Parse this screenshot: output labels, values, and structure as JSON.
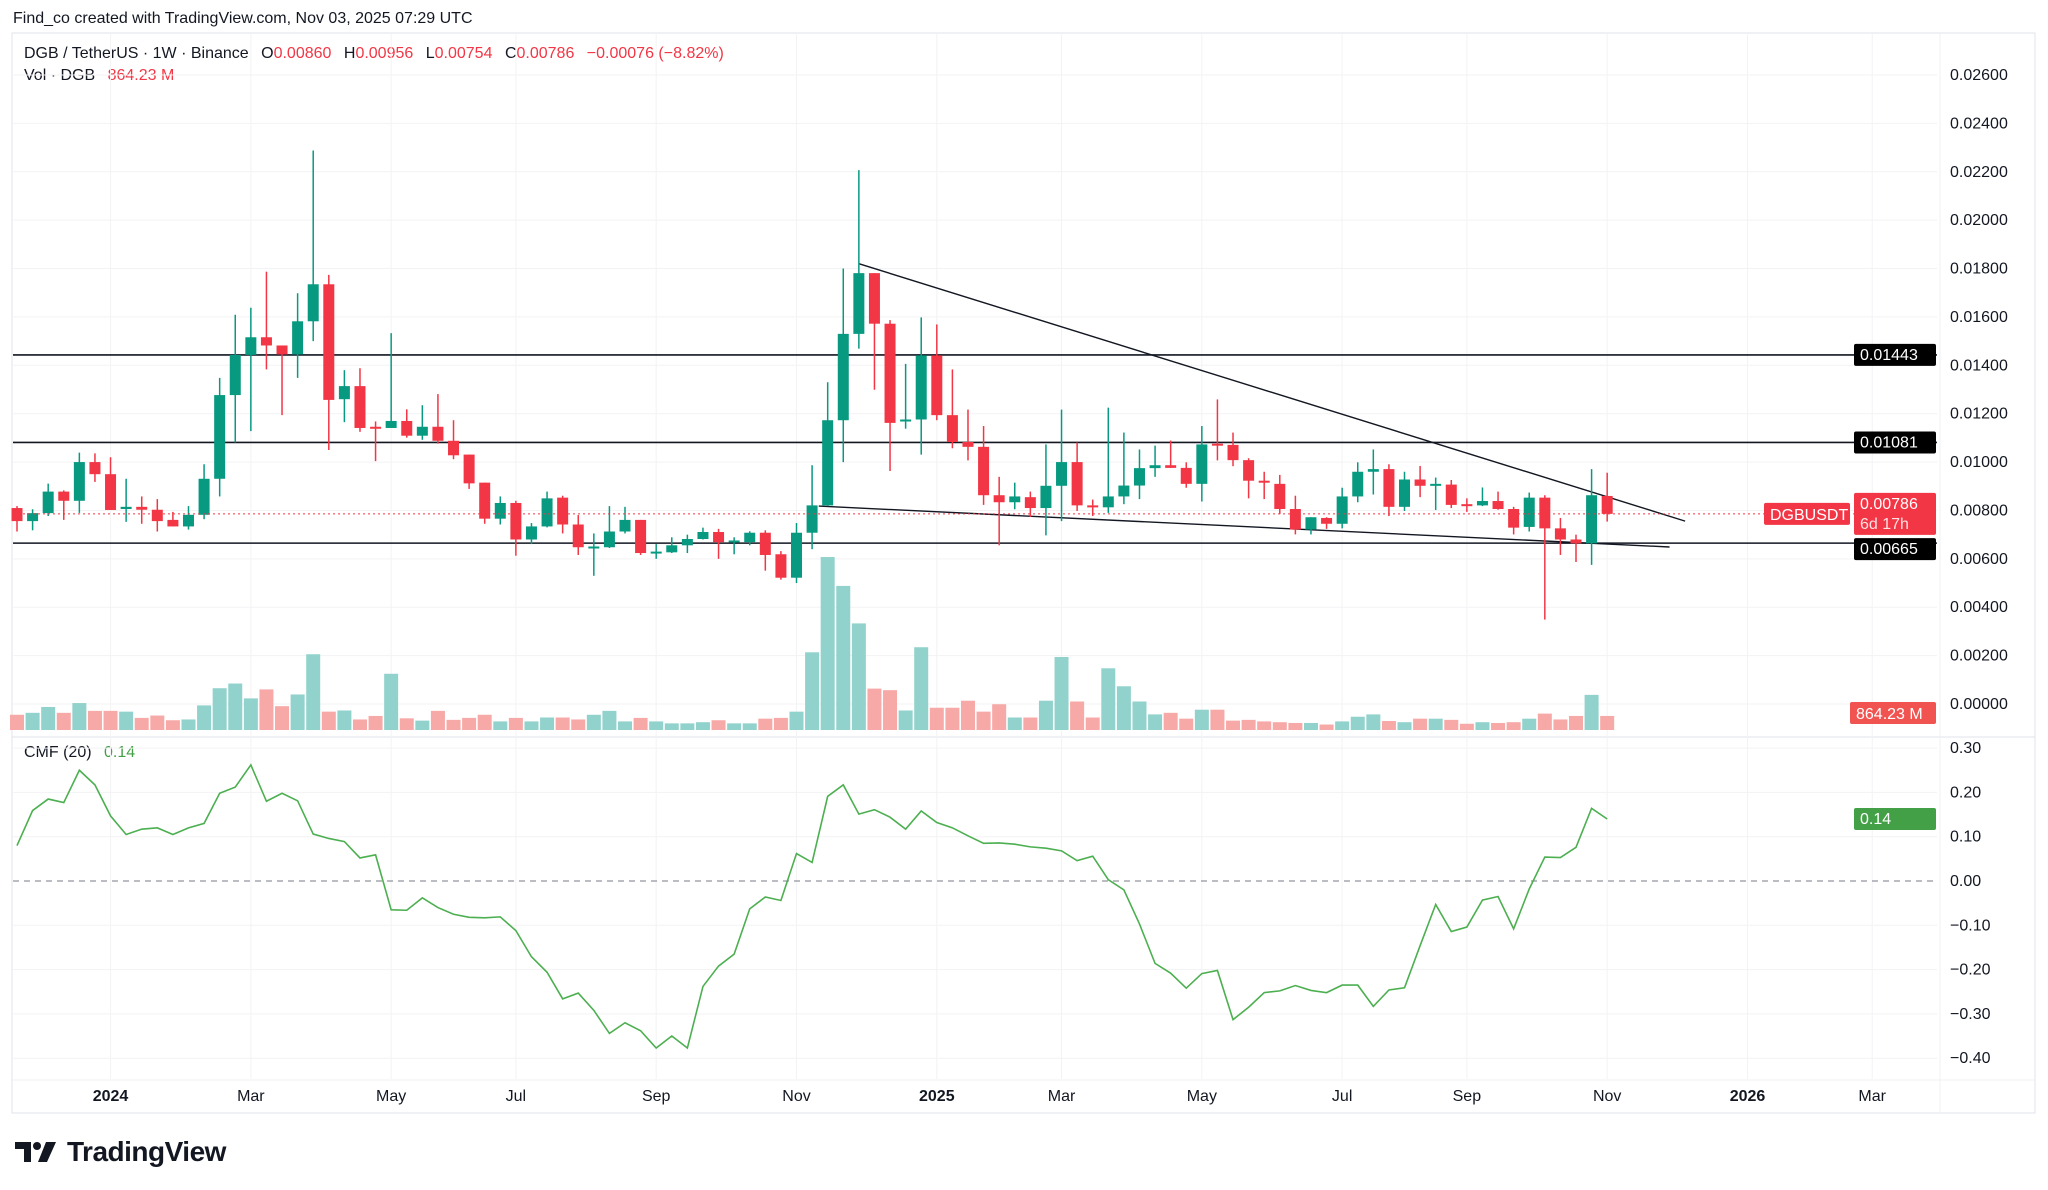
{
  "header": {
    "attribution": "Find_co created with TradingView.com, Nov 03, 2025 07:29 UTC"
  },
  "legend": {
    "symbol": "DGB / TetherUS · 1W · Binance",
    "o_label": "O",
    "open": "0.00860",
    "h_label": "H",
    "high": "0.00956",
    "l_label": "L",
    "low": "0.00754",
    "c_label": "C",
    "close": "0.00786",
    "change": "−0.00076 (−8.82%)",
    "vol_label": "Vol · DGB",
    "vol_value": "864.23 M",
    "cmf_label": "CMF (20)",
    "cmf_value": "0.14"
  },
  "logo": {
    "text": "TradingView"
  },
  "colors": {
    "up": "#089981",
    "down": "#f23645",
    "vol_up": "#92d2cc",
    "vol_down": "#f7a9a7",
    "cmf": "#4caf50",
    "level": "#131722"
  },
  "chart_data": {
    "type": "candlestick",
    "symbol": "DGBUSDT",
    "interval": "1W",
    "price_axis": {
      "ticks": [
        "0.02600",
        "0.02400",
        "0.02200",
        "0.02000",
        "0.01800",
        "0.01600",
        "0.01400",
        "0.01200",
        "0.01000",
        "0.00800",
        "0.00600",
        "0.00400",
        "0.00200",
        "0.00000"
      ],
      "range": [
        0,
        0.026
      ]
    },
    "cmf_axis": {
      "ticks": [
        "0.30",
        "0.20",
        "0.10",
        "0.00",
        "−0.10",
        "−0.20",
        "−0.30",
        "−0.40"
      ],
      "range": [
        -0.4,
        0.3
      ]
    },
    "time_axis": [
      {
        "text": "2024",
        "date": "2024-01-01",
        "bold": true
      },
      {
        "text": "Mar",
        "date": "2024-03-04"
      },
      {
        "text": "May",
        "date": "2024-05-06"
      },
      {
        "text": "Jul",
        "date": "2024-07-01"
      },
      {
        "text": "Sep",
        "date": "2024-09-02"
      },
      {
        "text": "Nov",
        "date": "2024-11-04"
      },
      {
        "text": "2025",
        "date": "2025-01-06",
        "bold": true
      },
      {
        "text": "Mar",
        "date": "2025-03-03"
      },
      {
        "text": "May",
        "date": "2025-05-05"
      },
      {
        "text": "Jul",
        "date": "2025-07-07"
      },
      {
        "text": "Sep",
        "date": "2025-09-01"
      },
      {
        "text": "Nov",
        "date": "2025-11-03"
      },
      {
        "text": "2026",
        "date": "2026-01-05",
        "bold": true
      },
      {
        "text": "Mar",
        "date": "2026-03-02"
      }
    ],
    "grid": true,
    "columns": [
      "date",
      "open",
      "high",
      "low",
      "close",
      "volume_M"
    ],
    "candles": [
      [
        "2023-11-20",
        0.0081,
        0.00818,
        0.00713,
        0.00756,
        936
      ],
      [
        "2023-11-27",
        0.00756,
        0.00805,
        0.00718,
        0.00789,
        1056
      ],
      [
        "2023-12-04",
        0.00789,
        0.00911,
        0.00777,
        0.00878,
        1416
      ],
      [
        "2023-12-11",
        0.00878,
        0.00883,
        0.00761,
        0.0084,
        1056
      ],
      [
        "2023-12-18",
        0.0084,
        0.01039,
        0.0079,
        0.01,
        1656
      ],
      [
        "2023-12-25",
        0.01,
        0.01036,
        0.00918,
        0.0095,
        1176
      ],
      [
        "2024-01-01",
        0.0095,
        0.0102,
        0.00802,
        0.00802,
        1176
      ],
      [
        "2024-01-08",
        0.00806,
        0.00931,
        0.00753,
        0.00815,
        1128
      ],
      [
        "2024-01-15",
        0.00815,
        0.00858,
        0.00745,
        0.00803,
        744
      ],
      [
        "2024-01-22",
        0.00803,
        0.00847,
        0.00713,
        0.00756,
        888
      ],
      [
        "2024-01-29",
        0.00761,
        0.00794,
        0.00734,
        0.00734,
        600
      ],
      [
        "2024-02-05",
        0.00734,
        0.00818,
        0.00721,
        0.00782,
        648
      ],
      [
        "2024-02-12",
        0.00782,
        0.00991,
        0.00764,
        0.00931,
        1512
      ],
      [
        "2024-02-19",
        0.00931,
        0.01348,
        0.00858,
        0.01277,
        2568
      ],
      [
        "2024-02-26",
        0.01277,
        0.01609,
        0.01081,
        0.01443,
        2856
      ],
      [
        "2024-03-04",
        0.01443,
        0.01638,
        0.01128,
        0.01516,
        1944
      ],
      [
        "2024-03-11",
        0.01516,
        0.01787,
        0.01383,
        0.01482,
        2496
      ],
      [
        "2024-03-18",
        0.01482,
        0.01482,
        0.01194,
        0.01445,
        1464
      ],
      [
        "2024-03-25",
        0.01445,
        0.01698,
        0.01348,
        0.01582,
        2184
      ],
      [
        "2024-04-01",
        0.01582,
        0.02288,
        0.015,
        0.01735,
        4656
      ],
      [
        "2024-04-08",
        0.01735,
        0.01774,
        0.0105,
        0.01257,
        1128
      ],
      [
        "2024-04-15",
        0.0126,
        0.0138,
        0.01165,
        0.01314,
        1200
      ],
      [
        "2024-04-22",
        0.01314,
        0.01388,
        0.01125,
        0.01141,
        648
      ],
      [
        "2024-04-29",
        0.01146,
        0.01168,
        0.01004,
        0.01141,
        864
      ],
      [
        "2024-05-06",
        0.01141,
        0.01533,
        0.01141,
        0.0117,
        3456
      ],
      [
        "2024-05-13",
        0.0117,
        0.01218,
        0.01101,
        0.01109,
        720
      ],
      [
        "2024-05-20",
        0.01109,
        0.01235,
        0.01092,
        0.01146,
        576
      ],
      [
        "2024-05-27",
        0.01146,
        0.01281,
        0.01076,
        0.01088,
        1176
      ],
      [
        "2024-06-03",
        0.01088,
        0.01173,
        0.01012,
        0.01028,
        624
      ],
      [
        "2024-06-10",
        0.01031,
        0.01031,
        0.00889,
        0.00912,
        744
      ],
      [
        "2024-06-17",
        0.00915,
        0.00915,
        0.00745,
        0.00766,
        936
      ],
      [
        "2024-06-24",
        0.00766,
        0.00858,
        0.00742,
        0.00831,
        528
      ],
      [
        "2024-07-01",
        0.00831,
        0.0084,
        0.00613,
        0.0068,
        744
      ],
      [
        "2024-07-08",
        0.0068,
        0.00748,
        0.00661,
        0.00734,
        528
      ],
      [
        "2024-07-15",
        0.00734,
        0.00878,
        0.0073,
        0.0085,
        768
      ],
      [
        "2024-07-22",
        0.00853,
        0.00861,
        0.00705,
        0.00742,
        768
      ],
      [
        "2024-07-29",
        0.00742,
        0.00781,
        0.00616,
        0.00648,
        648
      ],
      [
        "2024-08-05",
        0.00645,
        0.00705,
        0.0053,
        0.00651,
        936
      ],
      [
        "2024-08-12",
        0.00648,
        0.00818,
        0.00645,
        0.00713,
        1176
      ],
      [
        "2024-08-19",
        0.00713,
        0.00815,
        0.00705,
        0.00761,
        528
      ],
      [
        "2024-08-26",
        0.00761,
        0.00761,
        0.00616,
        0.00624,
        744
      ],
      [
        "2024-09-02",
        0.00624,
        0.00661,
        0.006,
        0.0063,
        528
      ],
      [
        "2024-09-09",
        0.00627,
        0.00689,
        0.00624,
        0.00656,
        408
      ],
      [
        "2024-09-16",
        0.00656,
        0.007,
        0.00624,
        0.00682,
        408
      ],
      [
        "2024-09-23",
        0.00682,
        0.00729,
        0.0068,
        0.00711,
        480
      ],
      [
        "2024-09-30",
        0.00711,
        0.00724,
        0.006,
        0.00669,
        600
      ],
      [
        "2024-10-07",
        0.0067,
        0.00689,
        0.00619,
        0.00676,
        408
      ],
      [
        "2024-10-14",
        0.00669,
        0.00714,
        0.00656,
        0.00708,
        408
      ],
      [
        "2024-10-21",
        0.00708,
        0.00718,
        0.00551,
        0.00616,
        696
      ],
      [
        "2024-10-28",
        0.00619,
        0.00632,
        0.00514,
        0.00522,
        744
      ],
      [
        "2024-11-04",
        0.00522,
        0.00748,
        0.005,
        0.00708,
        1128
      ],
      [
        "2024-11-11",
        0.00708,
        0.00987,
        0.0064,
        0.00821,
        4776
      ],
      [
        "2024-11-18",
        0.00821,
        0.0133,
        0.00818,
        0.01173,
        10632
      ],
      [
        "2024-11-25",
        0.01173,
        0.018,
        0.01,
        0.0153,
        8856
      ],
      [
        "2024-12-02",
        0.0153,
        0.02207,
        0.01469,
        0.01781,
        6552
      ],
      [
        "2024-12-09",
        0.01781,
        0.01781,
        0.01299,
        0.01572,
        2544
      ],
      [
        "2024-12-16",
        0.01572,
        0.01587,
        0.00963,
        0.01162,
        2448
      ],
      [
        "2024-12-23",
        0.01168,
        0.01406,
        0.01138,
        0.01176,
        1200
      ],
      [
        "2024-12-30",
        0.01176,
        0.01598,
        0.01031,
        0.01441,
        5088
      ],
      [
        "2025-01-06",
        0.01441,
        0.01569,
        0.01173,
        0.01194,
        1368
      ],
      [
        "2025-01-13",
        0.01194,
        0.01383,
        0.01057,
        0.01083,
        1368
      ],
      [
        "2025-01-20",
        0.01083,
        0.01217,
        0.01007,
        0.01063,
        1800
      ],
      [
        "2025-01-27",
        0.01063,
        0.01149,
        0.00823,
        0.00863,
        1128
      ],
      [
        "2025-02-03",
        0.00863,
        0.00939,
        0.00656,
        0.00834,
        1584
      ],
      [
        "2025-02-10",
        0.00834,
        0.00915,
        0.00805,
        0.00858,
        768
      ],
      [
        "2025-02-17",
        0.00855,
        0.00878,
        0.00773,
        0.0081,
        768
      ],
      [
        "2025-02-24",
        0.0081,
        0.01073,
        0.00697,
        0.00902,
        1800
      ],
      [
        "2025-03-03",
        0.00902,
        0.01217,
        0.00756,
        0.01,
        4488
      ],
      [
        "2025-03-10",
        0.01,
        0.01081,
        0.00798,
        0.00821,
        1752
      ],
      [
        "2025-03-17",
        0.00821,
        0.00845,
        0.00777,
        0.00813,
        768
      ],
      [
        "2025-03-24",
        0.00813,
        0.01225,
        0.0079,
        0.00858,
        3792
      ],
      [
        "2025-03-31",
        0.00858,
        0.01122,
        0.00826,
        0.00903,
        2688
      ],
      [
        "2025-04-07",
        0.00903,
        0.01052,
        0.00847,
        0.00975,
        1752
      ],
      [
        "2025-04-14",
        0.00975,
        0.01068,
        0.00939,
        0.00987,
        960
      ],
      [
        "2025-04-21",
        0.00987,
        0.01089,
        0.00976,
        0.00976,
        1056
      ],
      [
        "2025-04-28",
        0.00976,
        0.00999,
        0.00894,
        0.0091,
        696
      ],
      [
        "2025-05-05",
        0.0091,
        0.01149,
        0.00837,
        0.01073,
        1248
      ],
      [
        "2025-05-12",
        0.01076,
        0.01259,
        0.01007,
        0.01071,
        1248
      ],
      [
        "2025-05-19",
        0.01071,
        0.01122,
        0.00983,
        0.01008,
        576
      ],
      [
        "2025-05-26",
        0.01008,
        0.01016,
        0.0085,
        0.00923,
        624
      ],
      [
        "2025-06-02",
        0.00923,
        0.0096,
        0.00847,
        0.00915,
        528
      ],
      [
        "2025-06-09",
        0.0091,
        0.00947,
        0.00785,
        0.00806,
        480
      ],
      [
        "2025-06-16",
        0.00806,
        0.00861,
        0.00701,
        0.00721,
        432
      ],
      [
        "2025-06-23",
        0.00721,
        0.00772,
        0.00701,
        0.00772,
        432
      ],
      [
        "2025-06-30",
        0.00769,
        0.00772,
        0.00724,
        0.00745,
        336
      ],
      [
        "2025-07-07",
        0.00745,
        0.00894,
        0.00726,
        0.00858,
        528
      ],
      [
        "2025-07-14",
        0.00858,
        0.00999,
        0.00834,
        0.0096,
        816
      ],
      [
        "2025-07-21",
        0.0096,
        0.01052,
        0.00866,
        0.00971,
        960
      ],
      [
        "2025-07-28",
        0.00971,
        0.00991,
        0.00777,
        0.00815,
        552
      ],
      [
        "2025-08-04",
        0.00815,
        0.0096,
        0.00798,
        0.00928,
        480
      ],
      [
        "2025-08-11",
        0.00928,
        0.00984,
        0.00855,
        0.00902,
        696
      ],
      [
        "2025-08-18",
        0.00907,
        0.00936,
        0.00802,
        0.0091,
        696
      ],
      [
        "2025-08-25",
        0.00907,
        0.00926,
        0.0081,
        0.00823,
        624
      ],
      [
        "2025-09-01",
        0.00826,
        0.0085,
        0.00794,
        0.00821,
        384
      ],
      [
        "2025-09-08",
        0.00821,
        0.00895,
        0.00818,
        0.00839,
        480
      ],
      [
        "2025-09-15",
        0.00839,
        0.00878,
        0.00803,
        0.00806,
        432
      ],
      [
        "2025-09-22",
        0.00806,
        0.00815,
        0.00701,
        0.00729,
        480
      ],
      [
        "2025-09-29",
        0.00732,
        0.00874,
        0.00713,
        0.00853,
        696
      ],
      [
        "2025-10-06",
        0.00853,
        0.00863,
        0.00349,
        0.00726,
        1008
      ],
      [
        "2025-10-13",
        0.00726,
        0.00769,
        0.00616,
        0.0068,
        648
      ],
      [
        "2025-10-20",
        0.0068,
        0.007,
        0.00587,
        0.00664,
        864
      ],
      [
        "2025-10-27",
        0.00664,
        0.00971,
        0.00575,
        0.00863,
        2160
      ],
      [
        "2025-11-03",
        0.0086,
        0.00956,
        0.00754,
        0.00786,
        864.23
      ]
    ],
    "cmf": [
      0.08,
      0.159,
      0.185,
      0.177,
      0.25,
      0.217,
      0.147,
      0.105,
      0.117,
      0.12,
      0.105,
      0.12,
      0.13,
      0.198,
      0.212,
      0.262,
      0.18,
      0.198,
      0.181,
      0.106,
      0.096,
      0.089,
      0.052,
      0.059,
      -0.065,
      -0.066,
      -0.038,
      -0.06,
      -0.075,
      -0.082,
      -0.083,
      -0.081,
      -0.112,
      -0.171,
      -0.206,
      -0.266,
      -0.253,
      -0.292,
      -0.344,
      -0.32,
      -0.338,
      -0.377,
      -0.35,
      -0.377,
      -0.238,
      -0.192,
      -0.165,
      -0.063,
      -0.036,
      -0.044,
      0.062,
      0.042,
      0.191,
      0.217,
      0.151,
      0.161,
      0.144,
      0.117,
      0.158,
      0.132,
      0.12,
      0.102,
      0.085,
      0.086,
      0.083,
      0.077,
      0.074,
      0.068,
      0.046,
      0.056,
      0.003,
      -0.02,
      -0.097,
      -0.186,
      -0.208,
      -0.242,
      -0.209,
      -0.202,
      -0.313,
      -0.285,
      -0.252,
      -0.248,
      -0.236,
      -0.247,
      -0.252,
      -0.235,
      -0.235,
      -0.283,
      -0.246,
      -0.241,
      -0.146,
      -0.053,
      -0.114,
      -0.104,
      -0.043,
      -0.035,
      -0.108,
      -0.018,
      0.054,
      0.053,
      0.076,
      0.164,
      0.14
    ],
    "horizontal_levels": [
      {
        "price": 0.01443,
        "label": "0.01443"
      },
      {
        "price": 0.01081,
        "label": "0.01081"
      },
      {
        "price": 0.00665,
        "label": "0.00665"
      }
    ],
    "trendlines": [
      {
        "from": {
          "date": "2024-12-02",
          "price": 0.0182
        },
        "to": {
          "date": "2025-12-08",
          "price": 0.00756
        }
      },
      {
        "from": {
          "date": "2024-11-14",
          "price": 0.00818
        },
        "to": {
          "date": "2025-12-01",
          "price": 0.00649
        }
      }
    ],
    "last_price": {
      "price": 0.00786,
      "label": "0.00786",
      "countdown": "6d 17h",
      "symbol_tag": "DGBUSDT"
    },
    "last_volume": {
      "label": "864.23 M"
    },
    "last_cmf": {
      "value": 0.14,
      "label": "0.14"
    }
  }
}
